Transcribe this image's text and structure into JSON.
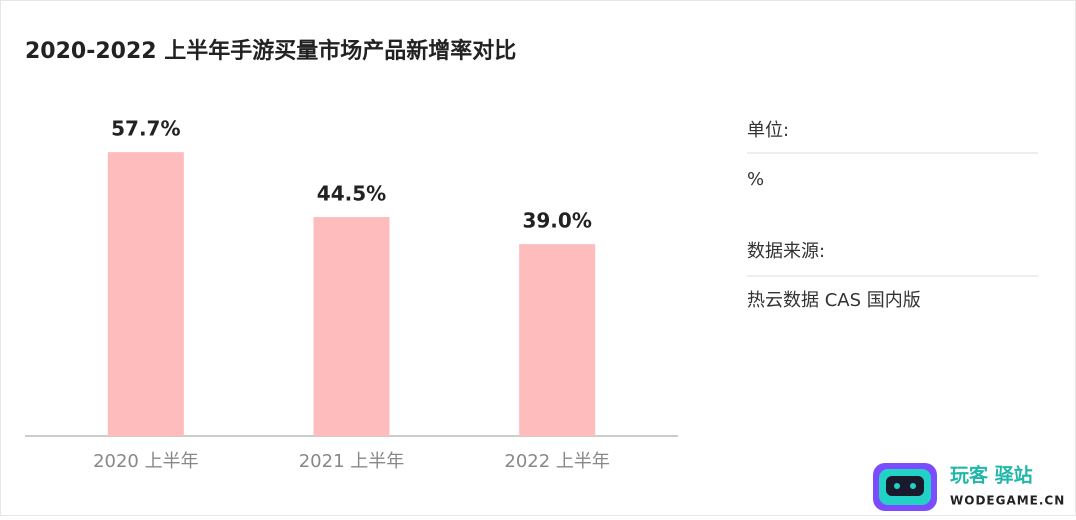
{
  "chart_data": {
    "type": "bar",
    "title": "2020-2022 上半年手游买量市场产品新增率对比",
    "categories": [
      "2020 上半年",
      "2021 上半年",
      "2022 上半年"
    ],
    "values": [
      57.7,
      44.5,
      39.0
    ],
    "value_labels": [
      "57.7%",
      "44.5%",
      "39.0%"
    ],
    "color": "#ffbcbc"
  },
  "side_panel": {
    "unit_label": "单位:",
    "unit": "%",
    "source_label": "数据来源:",
    "source": "热云数据 CAS 国内版"
  },
  "watermark": {
    "name": "玩客 驿站",
    "site": "WODEGAME.CN"
  }
}
